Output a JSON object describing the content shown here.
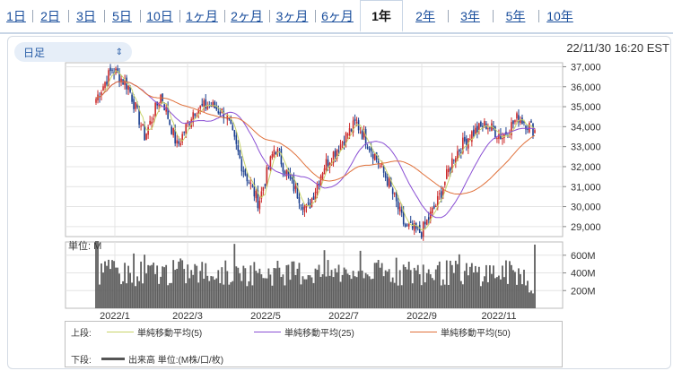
{
  "tabs": [
    {
      "label": "1日"
    },
    {
      "label": "2日"
    },
    {
      "label": "3日"
    },
    {
      "label": "5日"
    },
    {
      "label": "10日"
    },
    {
      "label": "1ヶ月"
    },
    {
      "label": "2ヶ月"
    },
    {
      "label": "3ヶ月"
    },
    {
      "label": "6ヶ月"
    },
    {
      "label": "1年",
      "active": true
    },
    {
      "label": "2年"
    },
    {
      "label": "3年"
    },
    {
      "label": "5年"
    },
    {
      "label": "10年"
    }
  ],
  "period_select": {
    "value": "日足",
    "icon": "updown-chevron-icon"
  },
  "timestamp": "22/11/30 16:20 EST",
  "volume_unit_label": "単位: M",
  "legend": {
    "upper_label": "上段:",
    "lower_label": "下段:",
    "series": [
      {
        "name": "単純移動平均(5)",
        "color": "#c8d46a"
      },
      {
        "name": "単純移動平均(25)",
        "color": "#8a4fd4"
      },
      {
        "name": "単純移動平均(50)",
        "color": "#e0703a"
      }
    ],
    "volume": {
      "name": "出来高 単位:(M株/口/枚)",
      "color": "#555555"
    }
  },
  "colors": {
    "up": "#cc2b2b",
    "down": "#1b3f8f",
    "volume": "#5e5e5e",
    "grid": "#e4e4e4"
  },
  "chart_data": [
    {
      "type": "candlestick",
      "x_tick_labels": [
        "2022/1",
        "2022/3",
        "2022/5",
        "2022/7",
        "2022/9",
        "2022/11"
      ],
      "y_tick_labels": [
        "37,000",
        "36,000",
        "35,000",
        "34,000",
        "33,000",
        "32,000",
        "31,000",
        "30,000",
        "29,000"
      ],
      "ylim": [
        28500,
        37200
      ],
      "close_anchors": [
        35400,
        36900,
        36000,
        33500,
        35600,
        33000,
        34800,
        35100,
        34600,
        32000,
        30200,
        33000,
        31200,
        29800,
        32000,
        33100,
        34200,
        32800,
        31200,
        29000,
        28700,
        30200,
        32500,
        33600,
        34100,
        33500,
        34500,
        33800
      ],
      "sma": [
        {
          "name": "単純移動平均(5)",
          "period": 5
        },
        {
          "name": "単純移動平均(25)",
          "period": 25
        },
        {
          "name": "単純移動平均(50)",
          "period": 50
        }
      ]
    },
    {
      "type": "bar",
      "name": "出来高",
      "y_tick_labels": [
        "600M",
        "400M",
        "200M"
      ],
      "ylim": [
        0,
        750
      ],
      "typical_range": [
        250,
        550
      ],
      "spikes": {
        "start": 760,
        "end": 720
      }
    }
  ]
}
